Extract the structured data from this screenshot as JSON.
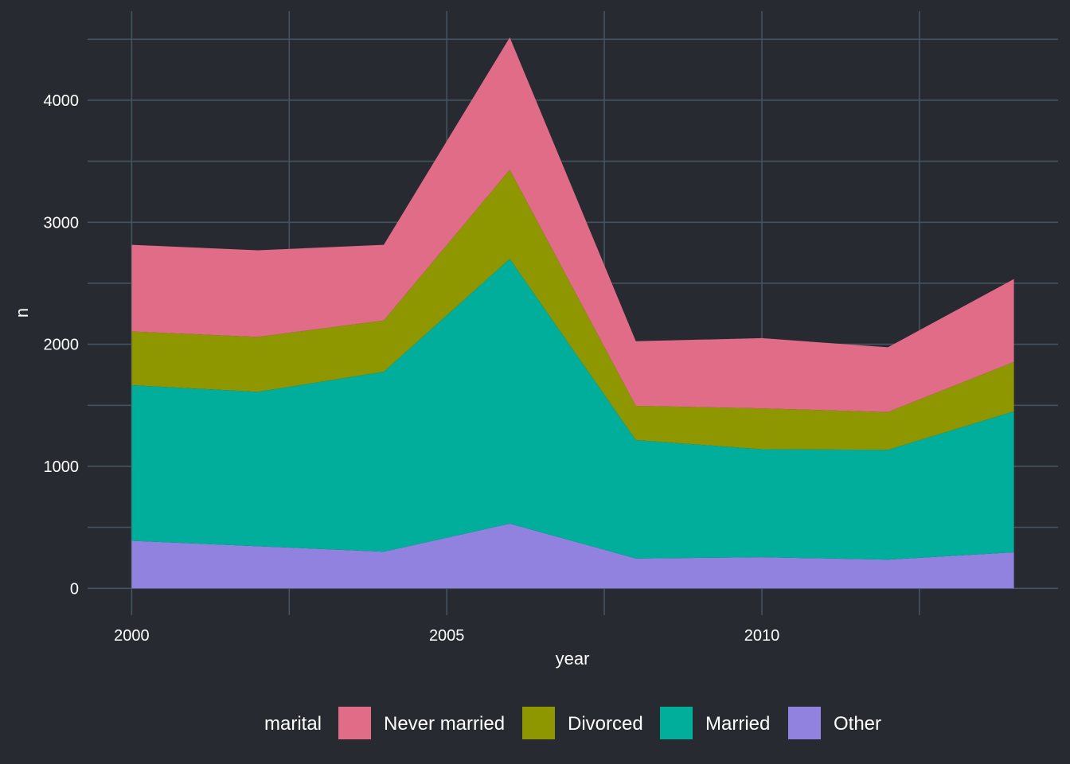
{
  "chart_data": {
    "type": "area",
    "stacked": true,
    "x": [
      2000,
      2002,
      2004,
      2006,
      2008,
      2010,
      2012,
      2014
    ],
    "series": [
      {
        "name": "Other",
        "values": [
          390,
          345,
          300,
          530,
          245,
          255,
          235,
          295
        ]
      },
      {
        "name": "Married",
        "values": [
          1275,
          1265,
          1475,
          2170,
          970,
          885,
          900,
          1155
        ]
      },
      {
        "name": "Divorced",
        "values": [
          440,
          450,
          420,
          730,
          280,
          335,
          310,
          405
        ]
      },
      {
        "name": "Never married",
        "values": [
          710,
          710,
          620,
          1085,
          530,
          575,
          530,
          680
        ]
      }
    ],
    "legend_title": "marital",
    "legend_order": [
      "Never married",
      "Divorced",
      "Married",
      "Other"
    ],
    "legend_position": "bottom",
    "colors": {
      "Never married": "#e06c87",
      "Divorced": "#8e9600",
      "Married": "#00ae9b",
      "Other": "#9182e0"
    },
    "xlabel": "year",
    "ylabel": "n",
    "x_ticks": [
      2000,
      2005,
      2010
    ],
    "y_ticks": [
      0,
      1000,
      2000,
      3000,
      4000
    ],
    "xlim": [
      1999.3,
      2014.7
    ],
    "ylim": [
      -220,
      4730
    ],
    "grid": true,
    "theme": {
      "background": "#272a30",
      "grid_color": "#44535f"
    }
  }
}
